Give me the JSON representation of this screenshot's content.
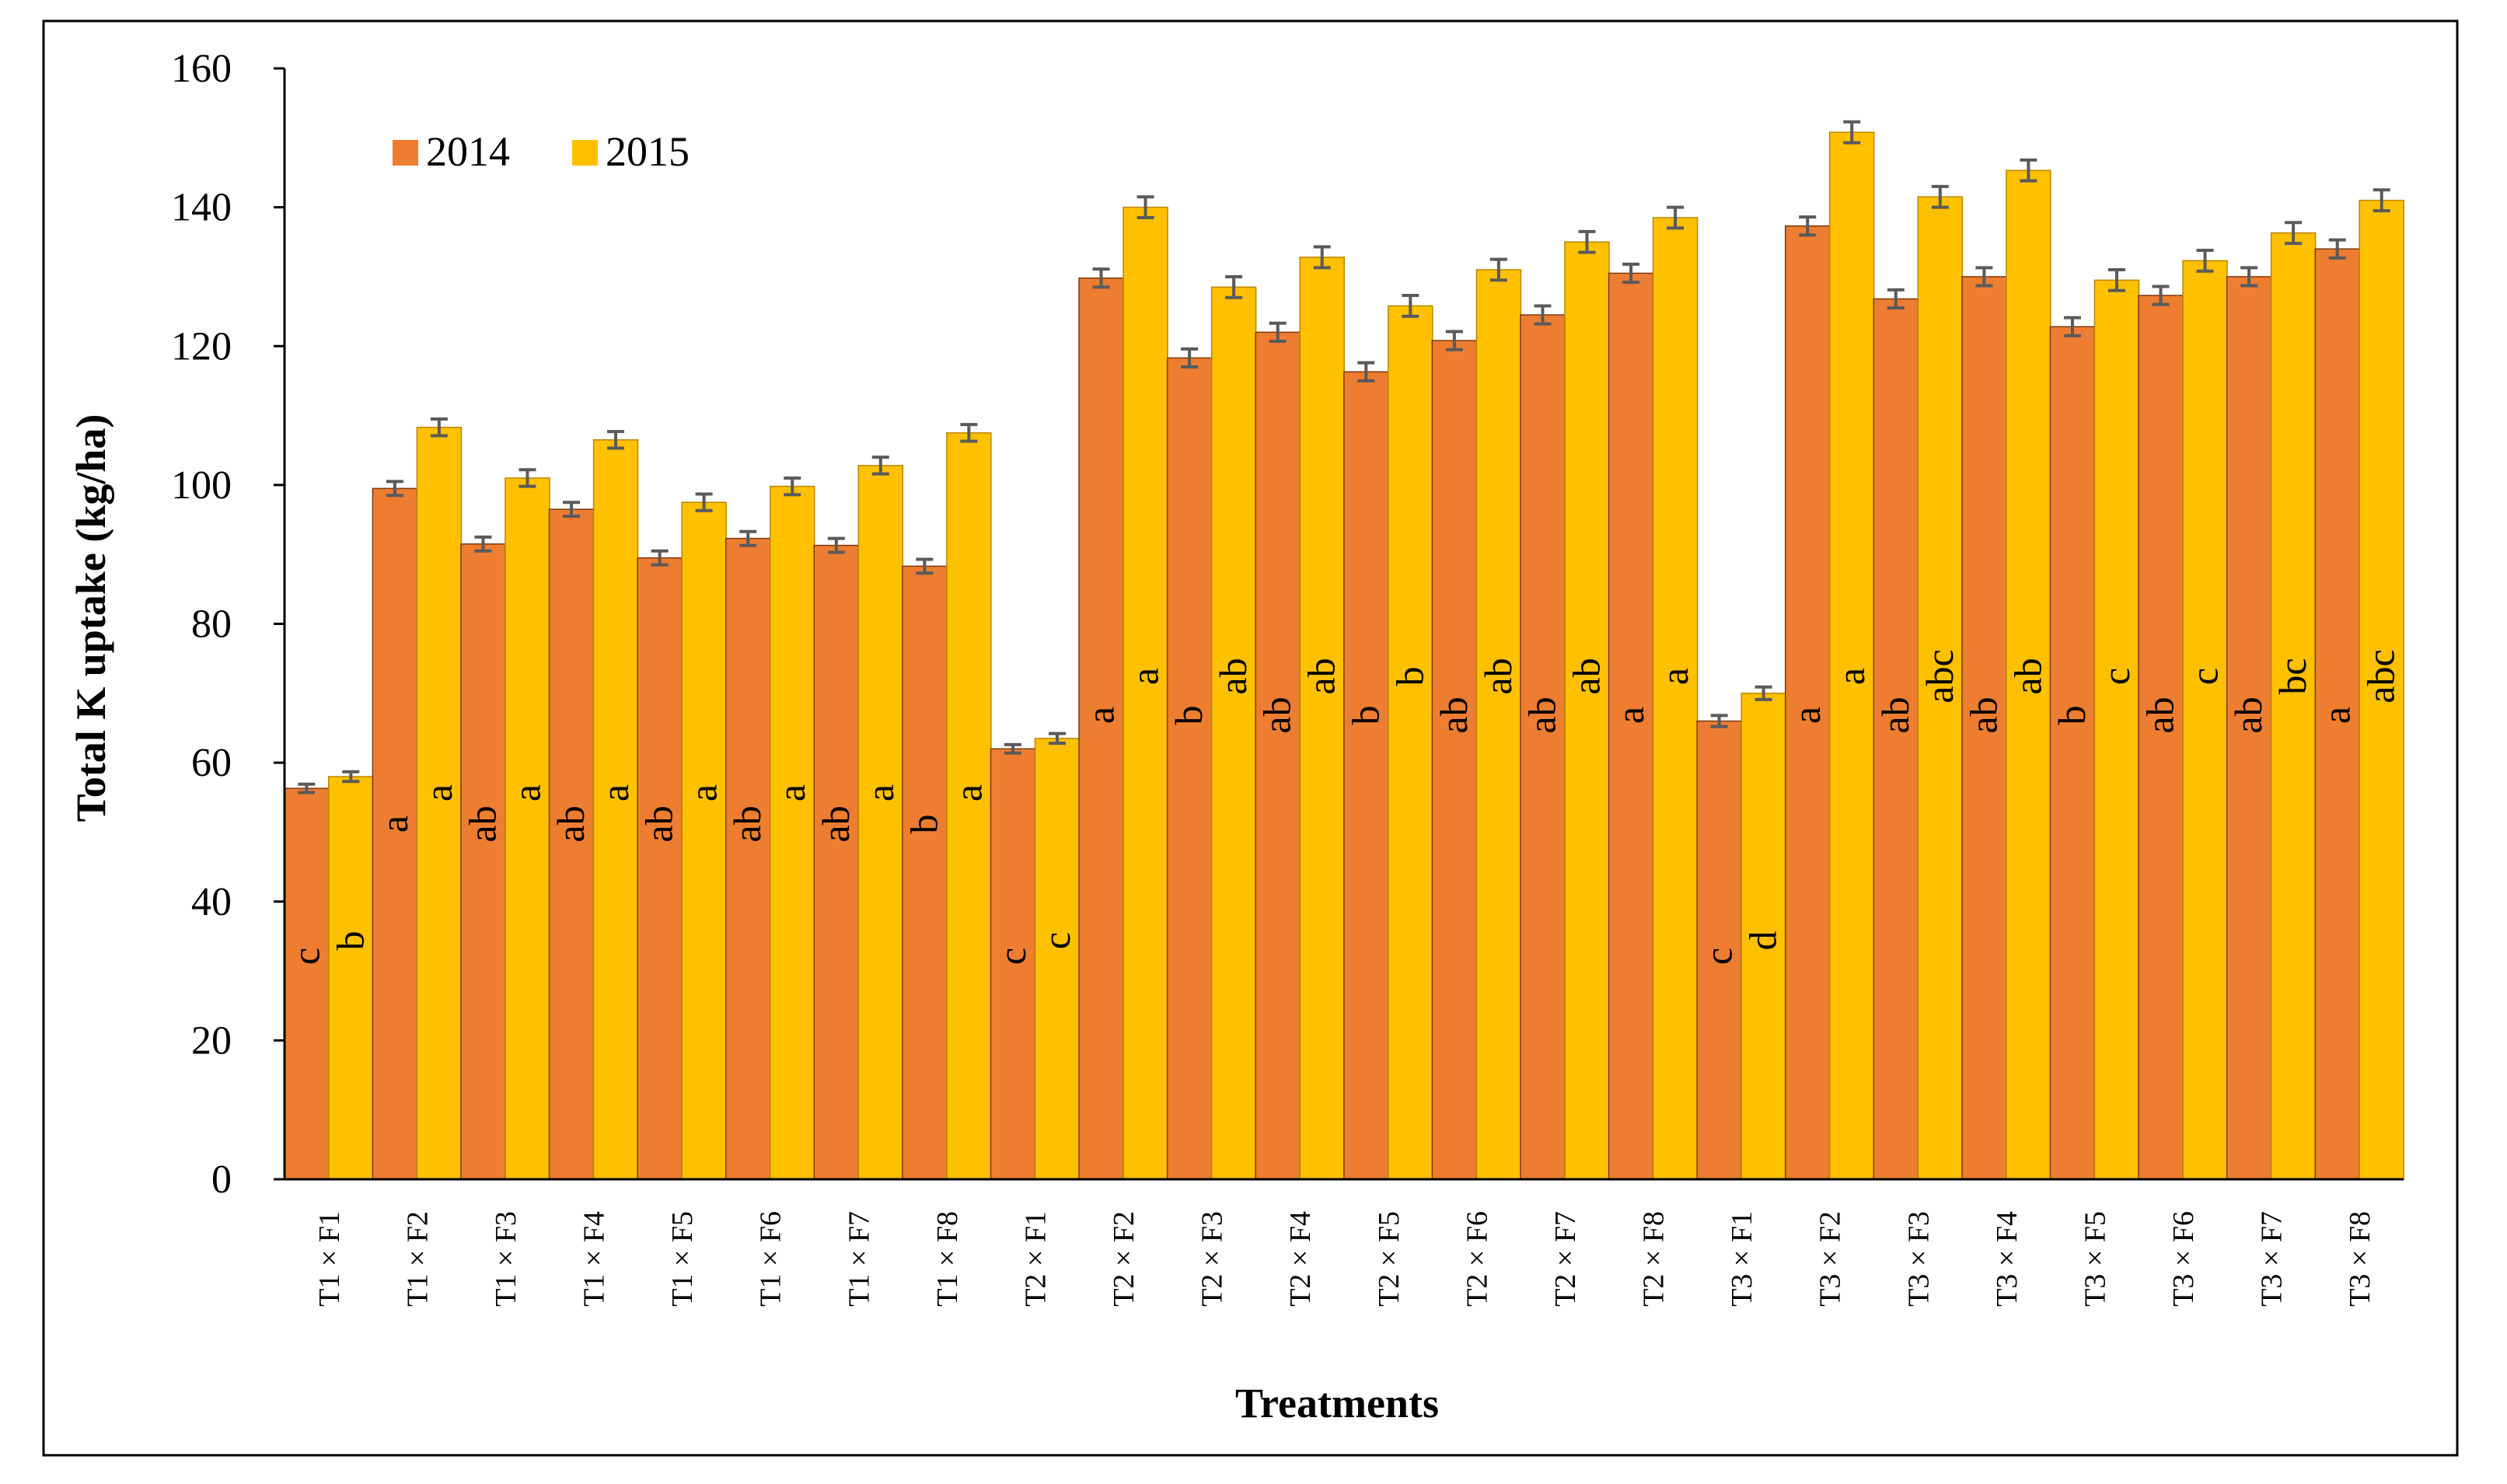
{
  "chart_data": {
    "type": "bar",
    "title": "",
    "xlabel": "Treatments",
    "ylabel": "Total K uptake (kg/ha)",
    "ylim": [
      0,
      160
    ],
    "yticks": [
      0,
      20,
      40,
      60,
      80,
      100,
      120,
      140,
      160
    ],
    "legend_position": "top-left",
    "categories": [
      "T1 × F1",
      "T1 × F2",
      "T1 × F3",
      "T1 × F4",
      "T1 × F5",
      "T1 × F6",
      "T1 × F7",
      "T1 × F8",
      "T2 × F1",
      "T2 × F2",
      "T2 × F3",
      "T2 × F4",
      "T2 × F5",
      "T2 × F6",
      "T2 × F7",
      "T2 × F8",
      "T3 × F1",
      "T3 × F2",
      "T3 × F3",
      "T3 × F4",
      "T3 × F5",
      "T3 × F6",
      "T3 × F7",
      "T3 × F8"
    ],
    "series": [
      {
        "name": "2014",
        "color": "#ED7D31",
        "values": [
          56.3,
          99.5,
          91.5,
          96.5,
          89.5,
          92.3,
          91.3,
          88.3,
          62.0,
          129.8,
          118.3,
          122.0,
          116.3,
          120.8,
          124.5,
          130.5,
          66.0,
          137.3,
          126.8,
          130.0,
          122.8,
          127.3,
          130.0,
          134.0
        ],
        "errors": [
          0.6,
          1.0,
          1.0,
          1.0,
          1.0,
          1.0,
          1.0,
          1.0,
          0.6,
          1.3,
          1.3,
          1.3,
          1.3,
          1.3,
          1.3,
          1.3,
          0.8,
          1.3,
          1.3,
          1.3,
          1.3,
          1.3,
          1.3,
          1.3
        ],
        "letters": [
          "c",
          "a",
          "ab",
          "ab",
          "ab",
          "ab",
          "ab",
          "b",
          "c",
          "a",
          "b",
          "ab",
          "b",
          "ab",
          "ab",
          "a",
          "c",
          "a",
          "ab",
          "ab",
          "b",
          "ab",
          "ab",
          "a"
        ]
      },
      {
        "name": "2015",
        "color": "#FFC000",
        "values": [
          58.0,
          108.3,
          101.0,
          106.5,
          97.5,
          99.8,
          102.8,
          107.5,
          63.5,
          140.0,
          128.5,
          132.8,
          125.8,
          131.0,
          135.0,
          138.5,
          70.0,
          150.8,
          141.5,
          145.3,
          129.5,
          132.3,
          136.3,
          141.0
        ],
        "errors": [
          0.7,
          1.2,
          1.2,
          1.2,
          1.2,
          1.2,
          1.2,
          1.2,
          0.7,
          1.5,
          1.5,
          1.5,
          1.5,
          1.5,
          1.5,
          1.5,
          0.9,
          1.5,
          1.5,
          1.5,
          1.5,
          1.5,
          1.5,
          1.5
        ],
        "letters": [
          "b",
          "a",
          "a",
          "a",
          "a",
          "a",
          "a",
          "a",
          "c",
          "a",
          "ab",
          "ab",
          "b",
          "ab",
          "ab",
          "a",
          "d",
          "a",
          "abc",
          "ab",
          "c",
          "c",
          "bc",
          "abc"
        ]
      }
    ]
  }
}
